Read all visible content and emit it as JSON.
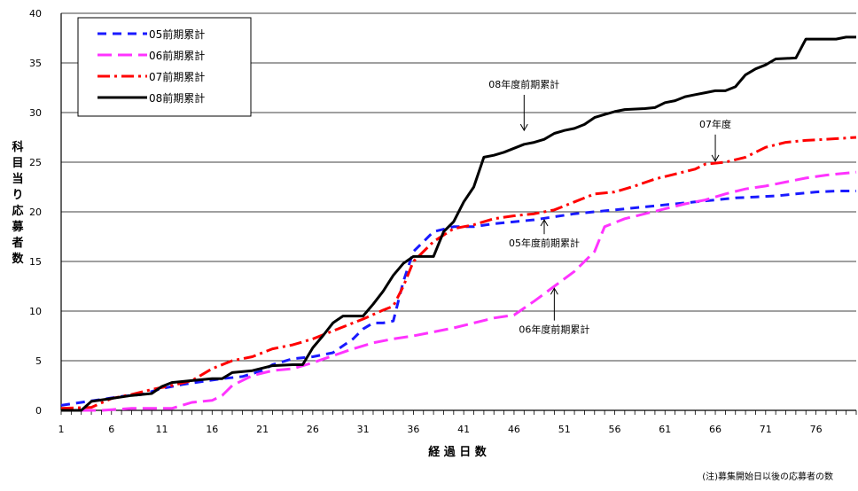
{
  "chart_data": {
    "type": "line",
    "title": "",
    "xlabel": "経 過 日 数",
    "ylabel": "科目当り応募者数",
    "xlim": [
      1,
      80
    ],
    "ylim": [
      0,
      40
    ],
    "xticks": [
      1,
      6,
      11,
      16,
      21,
      26,
      31,
      36,
      41,
      46,
      51,
      56,
      61,
      66,
      71,
      76
    ],
    "yticks": [
      0,
      5,
      10,
      15,
      20,
      25,
      30,
      35,
      40
    ],
    "grid": "horizontal",
    "legend_position": "top-left",
    "note": "(注)募集開始日以後の応募者の数",
    "series": [
      {
        "name": "05前期累計",
        "color": "#1a1aff",
        "dash": "10 7",
        "points": [
          [
            1,
            0.5
          ],
          [
            3,
            0.8
          ],
          [
            5,
            1.1
          ],
          [
            7,
            1.4
          ],
          [
            9,
            1.6
          ],
          [
            11,
            2.2
          ],
          [
            13,
            2.6
          ],
          [
            15,
            2.9
          ],
          [
            17,
            3.2
          ],
          [
            19,
            3.4
          ],
          [
            21,
            4.0
          ],
          [
            22,
            4.6
          ],
          [
            24,
            5.2
          ],
          [
            26,
            5.4
          ],
          [
            28,
            5.8
          ],
          [
            30,
            7.2
          ],
          [
            31,
            8.2
          ],
          [
            32,
            8.8
          ],
          [
            33,
            8.8
          ],
          [
            34,
            9.0
          ],
          [
            35,
            13.0
          ],
          [
            36,
            16.0
          ],
          [
            37,
            17.0
          ],
          [
            38,
            18.0
          ],
          [
            40,
            18.5
          ],
          [
            42,
            18.5
          ],
          [
            44,
            18.8
          ],
          [
            46,
            19.0
          ],
          [
            48,
            19.2
          ],
          [
            50,
            19.5
          ],
          [
            52,
            19.8
          ],
          [
            54,
            20.0
          ],
          [
            56,
            20.2
          ],
          [
            58,
            20.4
          ],
          [
            60,
            20.6
          ],
          [
            62,
            20.8
          ],
          [
            64,
            21.0
          ],
          [
            66,
            21.2
          ],
          [
            68,
            21.4
          ],
          [
            70,
            21.5
          ],
          [
            72,
            21.6
          ],
          [
            74,
            21.8
          ],
          [
            76,
            22.0
          ],
          [
            78,
            22.1
          ],
          [
            80,
            22.1
          ]
        ]
      },
      {
        "name": "06前期累計",
        "color": "#ff33ff",
        "dash": "16 7",
        "points": [
          [
            1,
            0
          ],
          [
            5,
            0
          ],
          [
            8,
            0.2
          ],
          [
            12,
            0.2
          ],
          [
            14,
            0.8
          ],
          [
            16,
            1.0
          ],
          [
            17,
            1.5
          ],
          [
            18,
            2.5
          ],
          [
            20,
            3.5
          ],
          [
            22,
            4.0
          ],
          [
            24,
            4.2
          ],
          [
            26,
            4.8
          ],
          [
            28,
            5.5
          ],
          [
            30,
            6.2
          ],
          [
            32,
            6.8
          ],
          [
            34,
            7.2
          ],
          [
            36,
            7.5
          ],
          [
            38,
            7.9
          ],
          [
            40,
            8.3
          ],
          [
            42,
            8.8
          ],
          [
            44,
            9.3
          ],
          [
            46,
            9.6
          ],
          [
            48,
            11.0
          ],
          [
            50,
            12.5
          ],
          [
            52,
            14.0
          ],
          [
            54,
            16.0
          ],
          [
            55,
            18.5
          ],
          [
            57,
            19.3
          ],
          [
            59,
            19.8
          ],
          [
            61,
            20.3
          ],
          [
            63,
            20.8
          ],
          [
            65,
            21.2
          ],
          [
            67,
            21.8
          ],
          [
            69,
            22.3
          ],
          [
            71,
            22.6
          ],
          [
            73,
            23.0
          ],
          [
            75,
            23.4
          ],
          [
            77,
            23.7
          ],
          [
            80,
            24.0
          ]
        ]
      },
      {
        "name": "07前期累計",
        "color": "#ff0000",
        "dash": "14 5 3 5",
        "points": [
          [
            1,
            0.2
          ],
          [
            4,
            0.3
          ],
          [
            6,
            1.2
          ],
          [
            8,
            1.6
          ],
          [
            10,
            2.1
          ],
          [
            12,
            2.5
          ],
          [
            14,
            3.0
          ],
          [
            16,
            4.2
          ],
          [
            18,
            5.0
          ],
          [
            20,
            5.4
          ],
          [
            22,
            6.2
          ],
          [
            24,
            6.6
          ],
          [
            26,
            7.2
          ],
          [
            28,
            8.0
          ],
          [
            30,
            8.8
          ],
          [
            31,
            9.2
          ],
          [
            33,
            10.1
          ],
          [
            34,
            10.5
          ],
          [
            35,
            12.5
          ],
          [
            36,
            15.0
          ],
          [
            38,
            17.0
          ],
          [
            40,
            18.3
          ],
          [
            42,
            18.7
          ],
          [
            44,
            19.3
          ],
          [
            46,
            19.6
          ],
          [
            48,
            19.8
          ],
          [
            50,
            20.2
          ],
          [
            52,
            21.0
          ],
          [
            54,
            21.8
          ],
          [
            56,
            22.0
          ],
          [
            58,
            22.6
          ],
          [
            60,
            23.3
          ],
          [
            62,
            23.8
          ],
          [
            64,
            24.3
          ],
          [
            65,
            24.8
          ],
          [
            67,
            25.0
          ],
          [
            69,
            25.5
          ],
          [
            71,
            26.5
          ],
          [
            73,
            27.0
          ],
          [
            75,
            27.2
          ],
          [
            77,
            27.3
          ],
          [
            80,
            27.5
          ]
        ]
      },
      {
        "name": "08前期累計",
        "color": "#000000",
        "dash": "",
        "points": [
          [
            1,
            0
          ],
          [
            3,
            0
          ],
          [
            4,
            0.9
          ],
          [
            6,
            1.2
          ],
          [
            8,
            1.5
          ],
          [
            10,
            1.7
          ],
          [
            11,
            2.4
          ],
          [
            12,
            2.8
          ],
          [
            14,
            3.0
          ],
          [
            16,
            3.2
          ],
          [
            17,
            3.2
          ],
          [
            18,
            3.8
          ],
          [
            20,
            4.0
          ],
          [
            22,
            4.5
          ],
          [
            24,
            4.6
          ],
          [
            25,
            4.6
          ],
          [
            26,
            6.3
          ],
          [
            27,
            7.5
          ],
          [
            28,
            8.8
          ],
          [
            29,
            9.5
          ],
          [
            31,
            9.5
          ],
          [
            32,
            10.7
          ],
          [
            33,
            12.0
          ],
          [
            34,
            13.6
          ],
          [
            35,
            14.8
          ],
          [
            36,
            15.5
          ],
          [
            38,
            15.5
          ],
          [
            39,
            18.0
          ],
          [
            40,
            19.0
          ],
          [
            41,
            21.0
          ],
          [
            42,
            22.5
          ],
          [
            43,
            25.5
          ],
          [
            44,
            25.7
          ],
          [
            45,
            26.0
          ],
          [
            47,
            26.8
          ],
          [
            48,
            27.0
          ],
          [
            49,
            27.3
          ],
          [
            50,
            27.9
          ],
          [
            51,
            28.2
          ],
          [
            52,
            28.4
          ],
          [
            53,
            28.8
          ],
          [
            54,
            29.5
          ],
          [
            55,
            29.8
          ],
          [
            56,
            30.1
          ],
          [
            57,
            30.3
          ],
          [
            59,
            30.4
          ],
          [
            60,
            30.5
          ],
          [
            61,
            31.0
          ],
          [
            62,
            31.2
          ],
          [
            63,
            31.6
          ],
          [
            64,
            31.8
          ],
          [
            65,
            32.0
          ],
          [
            66,
            32.2
          ],
          [
            67,
            32.2
          ],
          [
            68,
            32.6
          ],
          [
            69,
            33.8
          ],
          [
            70,
            34.4
          ],
          [
            71,
            34.8
          ],
          [
            72,
            35.4
          ],
          [
            74,
            35.5
          ],
          [
            75,
            37.4
          ],
          [
            78,
            37.4
          ],
          [
            79,
            37.6
          ],
          [
            80,
            37.6
          ]
        ]
      }
    ],
    "annotations": [
      {
        "text": "08年度前期累計",
        "x": 47,
        "y": 32.5,
        "arrow_to": [
          47,
          28.2
        ]
      },
      {
        "text": "07年度",
        "x": 66,
        "y": 28.5,
        "arrow_to": [
          66,
          25.1
        ]
      },
      {
        "text": "05年度前期累計",
        "x": 49,
        "y": 16.5,
        "arrow_to": [
          49,
          19.2
        ]
      },
      {
        "text": "06年度前期累計",
        "x": 50,
        "y": 7.8,
        "arrow_to": [
          50,
          12.3
        ]
      }
    ]
  }
}
